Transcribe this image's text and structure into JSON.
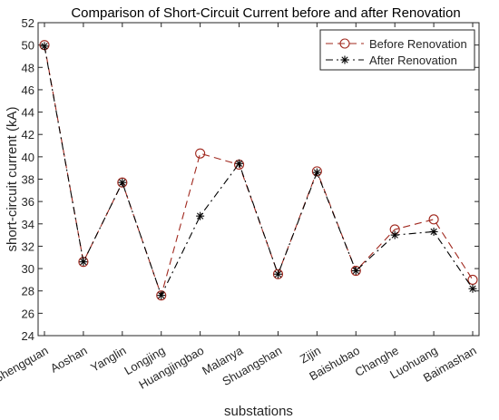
{
  "chart_data": {
    "type": "line",
    "title": "Comparison of Short-Circuit Current before and after Renovation",
    "xlabel": "substations",
    "ylabel": "short-circuit current (kA)",
    "categories": [
      "Shengquan",
      "Aoshan",
      "Yanglin",
      "Longjing",
      "Huangjingbao",
      "Malanya",
      "Shuangshan",
      "Zijin",
      "Baishubao",
      "Changhe",
      "Luohuang",
      "Baimashan"
    ],
    "ylim": [
      24,
      52
    ],
    "yticks": [
      24,
      26,
      28,
      30,
      32,
      34,
      36,
      38,
      40,
      42,
      44,
      46,
      48,
      50,
      52
    ],
    "grid": false,
    "legend_position": "top-right",
    "series": [
      {
        "name": "Before Renovation",
        "values": [
          50.0,
          30.6,
          37.7,
          27.6,
          40.3,
          39.3,
          29.5,
          38.7,
          29.8,
          33.5,
          34.4,
          29.0
        ],
        "color": "#a0281e",
        "line_style": "dashed",
        "marker": "circle"
      },
      {
        "name": "After Renovation",
        "values": [
          49.9,
          30.6,
          37.7,
          27.6,
          34.7,
          39.4,
          29.5,
          38.6,
          29.8,
          33.0,
          33.3,
          28.2
        ],
        "color": "#000000",
        "line_style": "dashdot",
        "marker": "asterisk"
      }
    ]
  }
}
